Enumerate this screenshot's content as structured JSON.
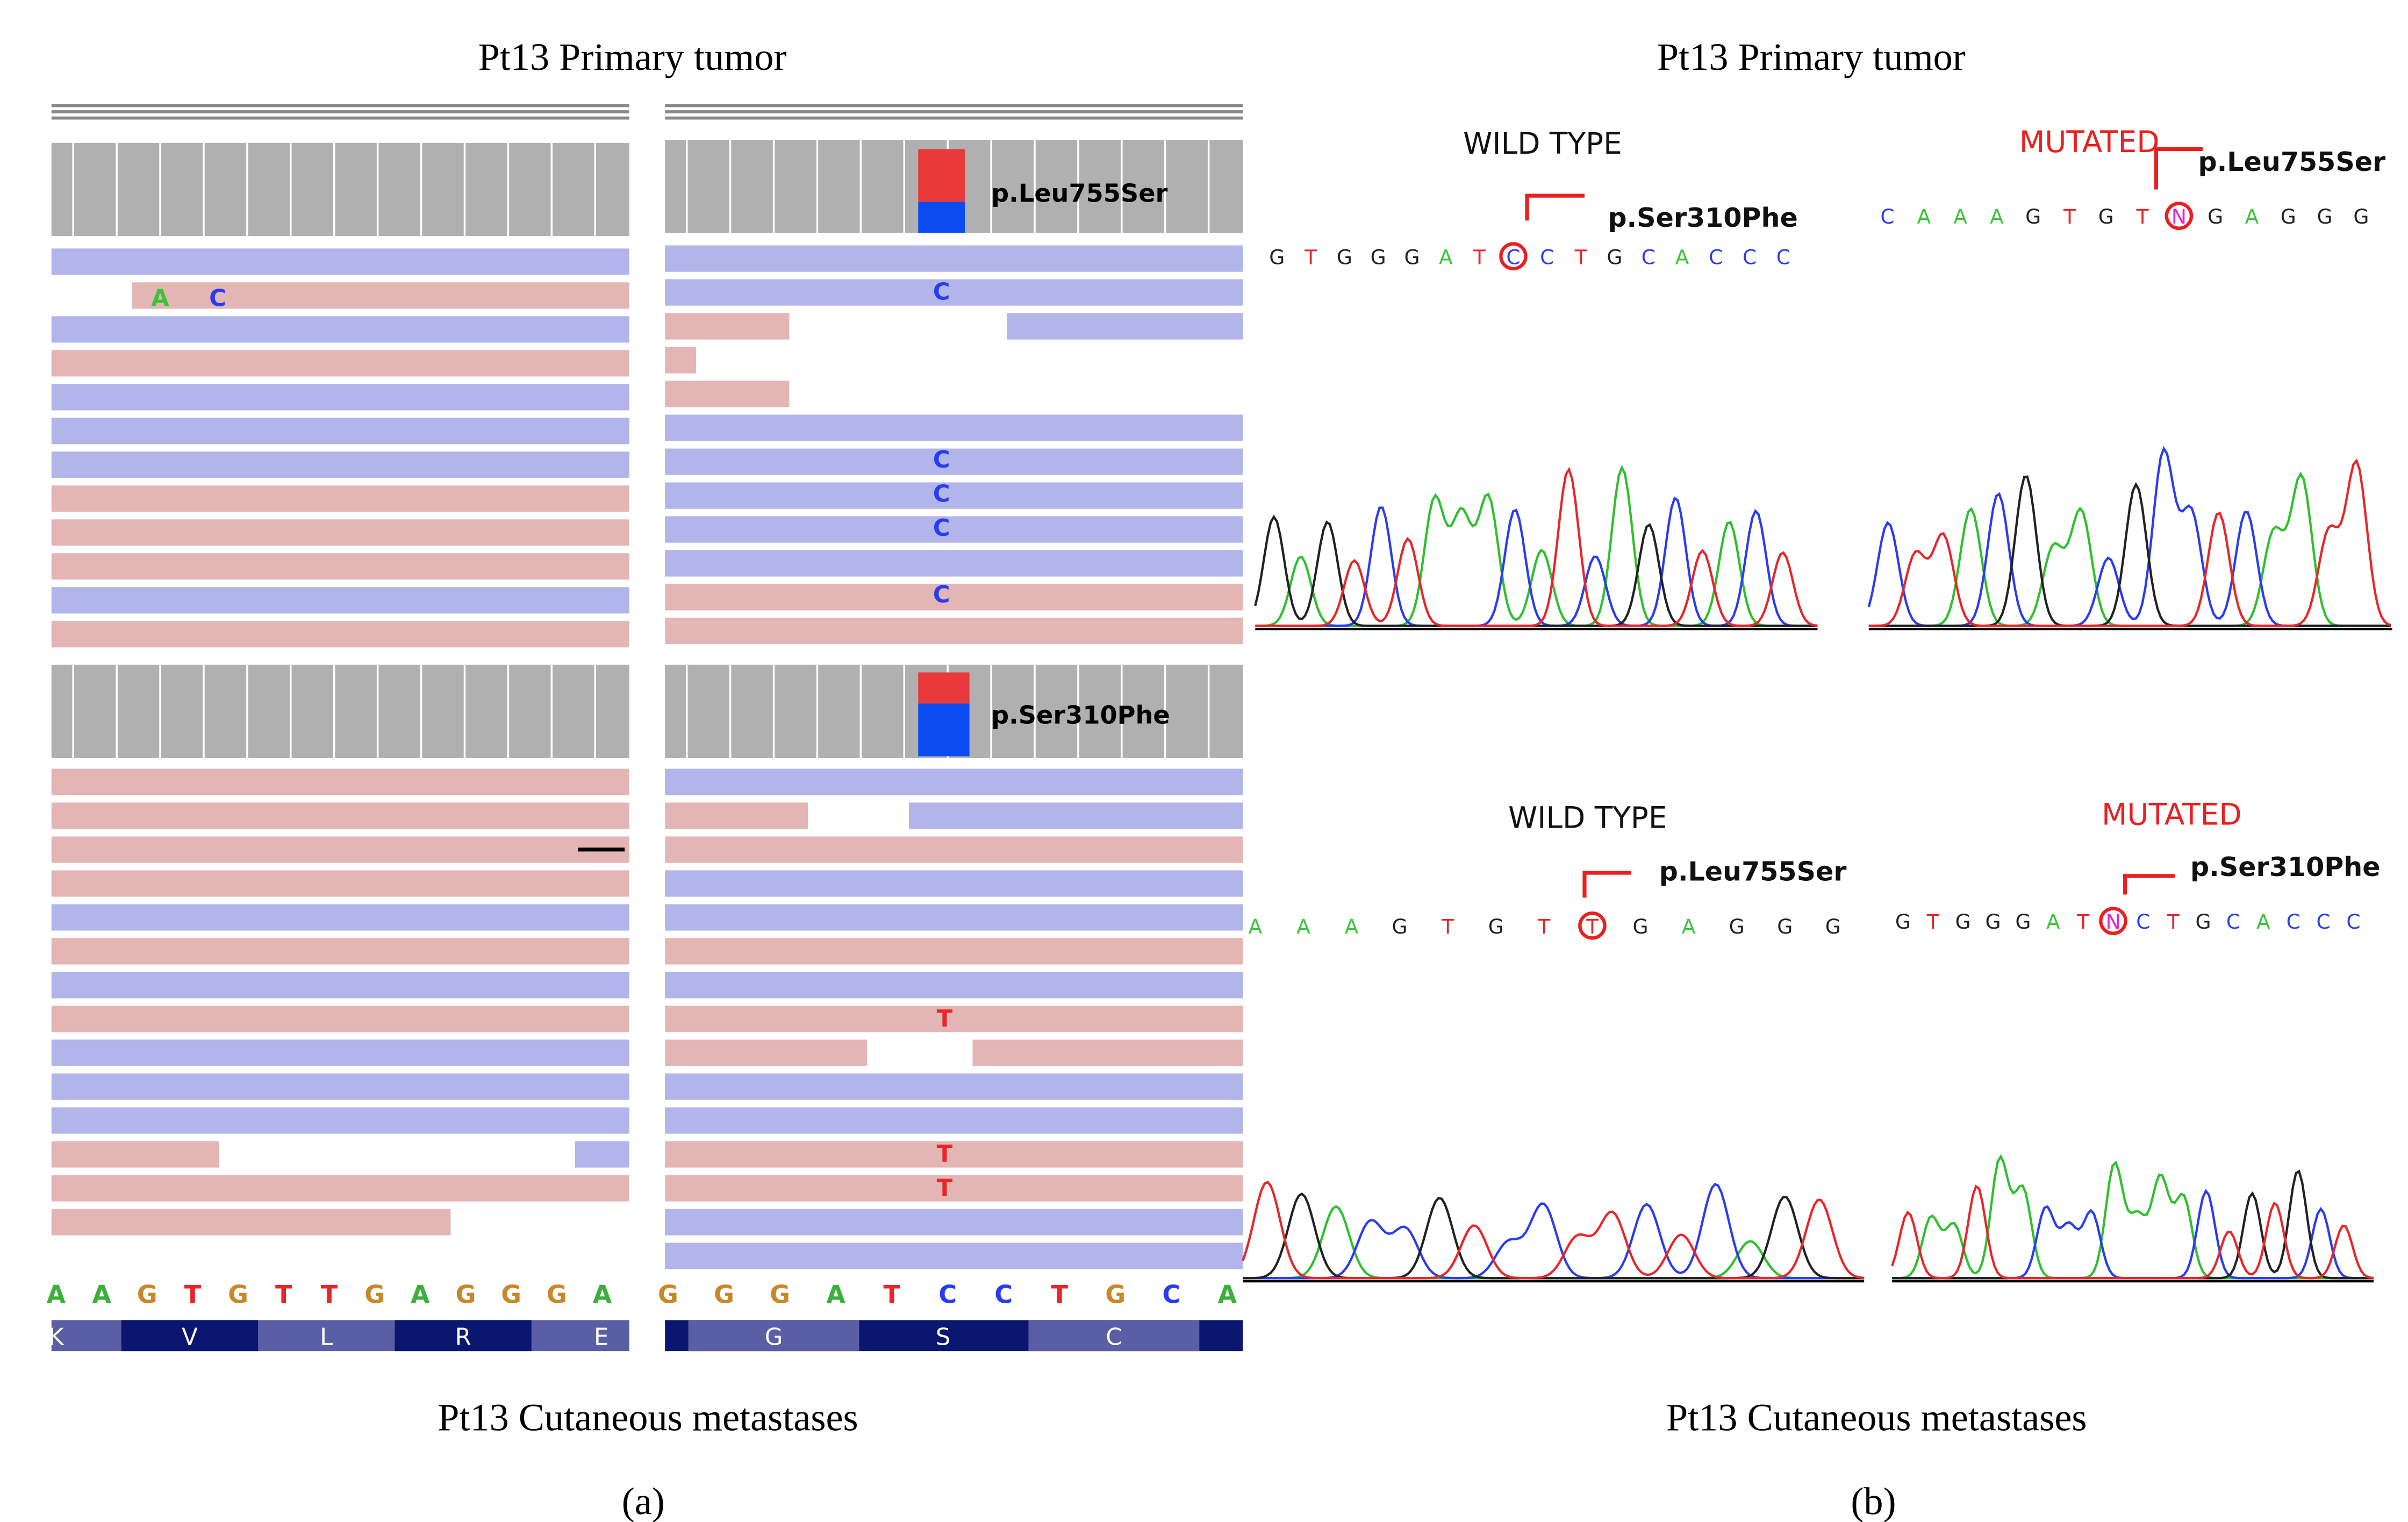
{
  "panel_a": {
    "top_title": "Pt13 Primary tumor",
    "bottom_title": "Pt13 Cutaneous metastases",
    "label": "(a)",
    "top_right_annotation": "p.Leu755Ser",
    "bottom_right_annotation": "p.Ser310Phe",
    "top_left_read_bases": [
      "A",
      "C"
    ],
    "top_right_read_bases": [
      "C",
      "C",
      "C",
      "C",
      "C"
    ],
    "bottom_right_read_bases": [
      "T",
      "T",
      "T"
    ],
    "left_reference": [
      "A",
      "A",
      "G",
      "T",
      "G",
      "T",
      "T",
      "G",
      "A",
      "G",
      "G",
      "G",
      "A"
    ],
    "left_amino_acids": [
      "K",
      "V",
      "L",
      "R",
      "E"
    ],
    "right_reference": [
      "G",
      "G",
      "G",
      "A",
      "T",
      "C",
      "C",
      "T",
      "G",
      "C",
      "A"
    ],
    "right_amino_acids": [
      "G",
      "S",
      "C"
    ]
  },
  "panel_b": {
    "top_title": "Pt13 Primary tumor",
    "bottom_title": "Pt13 Cutaneous metastases",
    "label": "(b)",
    "chromatograms": [
      {
        "heading": "WILD TYPE",
        "mutation": "p.Ser310Phe",
        "sequence": [
          "G",
          "T",
          "G",
          "G",
          "G",
          "A",
          "T",
          "C",
          "C",
          "T",
          "G",
          "C",
          "A",
          "C",
          "C",
          "C"
        ]
      },
      {
        "heading": "MUTATED",
        "mutation": "p.Leu755Ser",
        "sequence": [
          "C",
          "A",
          "A",
          "A",
          "G",
          "T",
          "G",
          "T",
          "N",
          "G",
          "A",
          "G",
          "G",
          "G"
        ]
      },
      {
        "heading": "WILD TYPE",
        "mutation": "p.Leu755Ser",
        "sequence": [
          "A",
          "A",
          "A",
          "G",
          "T",
          "G",
          "T",
          "T",
          "G",
          "A",
          "G",
          "G",
          "G"
        ]
      },
      {
        "heading": "MUTATED",
        "mutation": "p.Ser310Phe",
        "sequence": [
          "G",
          "T",
          "G",
          "G",
          "G",
          "A",
          "T",
          "N",
          "C",
          "T",
          "G",
          "C",
          "A",
          "C",
          "C",
          "C"
        ]
      }
    ]
  }
}
